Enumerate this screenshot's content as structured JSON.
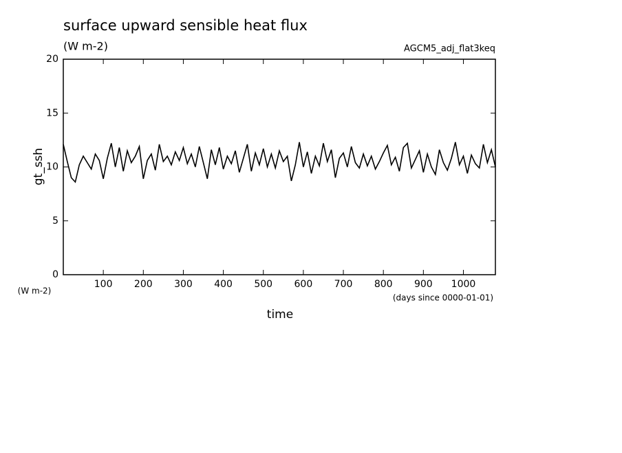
{
  "chart_data": {
    "type": "line",
    "title": "surface upward sensible heat flux",
    "subtitle": "(W m-2)",
    "annotation": "AGCM5_adj_flat3keq",
    "y_label": "gt_ssh",
    "y_unit": "(W m-2)",
    "x_label": "time",
    "x_unit": "(days since 0000-01-01)",
    "color": "#000000",
    "xlim": [
      0,
      1080
    ],
    "ylim": [
      0,
      20
    ],
    "xticks": [
      100,
      200,
      300,
      400,
      500,
      600,
      700,
      800,
      900,
      1000
    ],
    "yticks": [
      0,
      5,
      10,
      15,
      20
    ],
    "x": [
      0,
      10,
      20,
      30,
      40,
      50,
      60,
      70,
      80,
      90,
      100,
      110,
      120,
      130,
      140,
      150,
      160,
      170,
      180,
      190,
      200,
      210,
      220,
      230,
      240,
      250,
      260,
      270,
      280,
      290,
      300,
      310,
      320,
      330,
      340,
      350,
      360,
      370,
      380,
      390,
      400,
      410,
      420,
      430,
      440,
      450,
      460,
      470,
      480,
      490,
      500,
      510,
      520,
      530,
      540,
      550,
      560,
      570,
      580,
      590,
      600,
      610,
      620,
      630,
      640,
      650,
      660,
      670,
      680,
      690,
      700,
      710,
      720,
      730,
      740,
      750,
      760,
      770,
      780,
      790,
      800,
      810,
      820,
      830,
      840,
      850,
      860,
      870,
      880,
      890,
      900,
      910,
      920,
      930,
      940,
      950,
      960,
      970,
      980,
      990,
      1000,
      1010,
      1020,
      1030,
      1040,
      1050,
      1060,
      1070,
      1080
    ],
    "values": [
      12.1,
      10.5,
      9.0,
      8.6,
      10.2,
      11.0,
      10.4,
      9.8,
      11.2,
      10.6,
      8.9,
      10.8,
      12.2,
      10.0,
      11.8,
      9.6,
      11.5,
      10.4,
      11.0,
      11.9,
      8.9,
      10.6,
      11.2,
      9.7,
      12.1,
      10.5,
      11.0,
      10.2,
      11.4,
      10.6,
      11.8,
      10.3,
      11.2,
      10.0,
      11.9,
      10.4,
      8.9,
      11.6,
      10.2,
      11.8,
      9.8,
      11.0,
      10.3,
      11.5,
      9.5,
      10.8,
      12.1,
      9.6,
      11.3,
      10.2,
      11.7,
      10.0,
      11.2,
      9.9,
      11.5,
      10.5,
      11.0,
      8.7,
      10.2,
      12.3,
      10.0,
      11.4,
      9.4,
      11.0,
      10.1,
      12.2,
      10.5,
      11.6,
      9.0,
      10.8,
      11.3,
      10.0,
      11.9,
      10.4,
      9.9,
      11.2,
      10.1,
      11.0,
      9.8,
      10.5,
      11.3,
      12.0,
      10.2,
      10.9,
      9.6,
      11.8,
      12.2,
      9.9,
      10.7,
      11.5,
      9.5,
      11.2,
      10.0,
      9.3,
      11.6,
      10.4,
      9.7,
      10.8,
      12.3,
      10.2,
      11.0,
      9.4,
      11.1,
      10.3,
      9.9,
      12.1,
      10.4,
      11.6,
      10.0
    ]
  }
}
